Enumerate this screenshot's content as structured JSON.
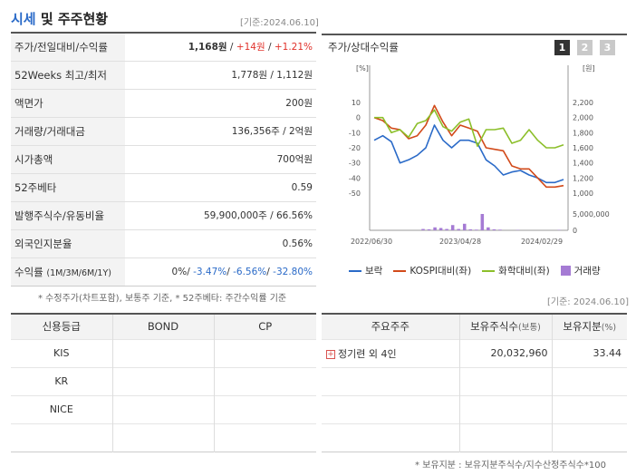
{
  "header": {
    "title_blue": "시세",
    "title_rest": " 및 주주현황",
    "base_date": "[기준:2024.06.10]"
  },
  "summary_rows": [
    {
      "label": "주가/전일대비/수익률",
      "price": "1,168원",
      "change": "+14원",
      "ratio": "+1.21%"
    },
    {
      "label": "52Weeks 최고/최저",
      "value": "1,778원 / 1,112원"
    },
    {
      "label": "액면가",
      "value": "200원"
    },
    {
      "label": "거래량/거래대금",
      "value": "136,356주 / 2억원"
    },
    {
      "label": "시가총액",
      "value": "700억원"
    },
    {
      "label": "52주베타",
      "value": "0.59"
    },
    {
      "label": "발행주식수/유동비율",
      "value": "59,900,000주 / 66.56%"
    },
    {
      "label": "외국인지분율",
      "value": "0.56%"
    },
    {
      "label": "수익률",
      "label_sub": "(1M/3M/6M/1Y)",
      "r1": "0%",
      "r2": "-3.47%",
      "r3": "-6.56%",
      "r4": "-32.80%"
    }
  ],
  "summary_note": "* 수정주가(차트포함), 보통주 기준, * 52주베타: 주간수익률 기준",
  "chart_panel": {
    "title": "주가/상대수익률",
    "tabs": [
      "1",
      "2",
      "3"
    ],
    "active_tab": "1",
    "base_date": "[기준: 2024.06.10]",
    "legend": [
      "보락",
      "KOSPI대비(좌)",
      "화학대비(좌)",
      "거래량"
    ]
  },
  "chart_data": {
    "type": "line",
    "left_axis_unit": "[%]",
    "right_axis_unit": "[원]",
    "left_ticks": [
      10,
      0,
      -10,
      -20,
      -30,
      -40,
      -50
    ],
    "right_ticks": [
      2200,
      2000,
      1800,
      1600,
      1400,
      1200,
      1000
    ],
    "right_tick_labels": [
      "2,200",
      "2,000",
      "1,800",
      "1,600",
      "1,400",
      "1,200",
      "1,000"
    ],
    "volume_ticks": [
      "5,000,000",
      "0"
    ],
    "x_tick_labels": [
      "2022/06/30",
      "2023/04/28",
      "2024/02/29"
    ],
    "colors": {
      "price": "#2a6ac8",
      "kospi": "#d24a1a",
      "chem": "#8cbf2a",
      "volume": "#a57bd4"
    },
    "series": [
      {
        "name": "보락",
        "values": [
          -15,
          -12,
          -16,
          -30,
          -28,
          -25,
          -20,
          -5,
          -15,
          -20,
          -15,
          -15,
          -17,
          -28,
          -32,
          -38,
          -36,
          -35,
          -38,
          -40,
          -43,
          -43,
          -41
        ]
      },
      {
        "name": "KOSPI대비(좌)",
        "values": [
          0,
          -2,
          -7,
          -8,
          -14,
          -12,
          -5,
          8,
          -3,
          -12,
          -5,
          -7,
          -9,
          -20,
          -21,
          -22,
          -32,
          -34,
          -34,
          -40,
          -46,
          -46,
          -45
        ]
      },
      {
        "name": "화학대비(좌)",
        "values": [
          0,
          0,
          -10,
          -8,
          -13,
          -4,
          -2,
          5,
          -6,
          -9,
          -3,
          -1,
          -19,
          -8,
          -8,
          -7,
          -17,
          -15,
          -8,
          -15,
          -20,
          -20,
          -18
        ]
      },
      {
        "name": "거래량",
        "values": [
          0,
          0,
          0,
          0,
          0,
          0,
          0,
          0,
          400000,
          300000,
          900000,
          700000,
          400000,
          1600000,
          400000,
          2000000,
          300000,
          200000,
          5000000,
          900000,
          300000,
          200000,
          0,
          0,
          100000,
          0,
          0,
          0,
          0,
          0,
          0,
          100000
        ]
      }
    ]
  },
  "credit_table": {
    "headers": [
      "신용등급",
      "BOND",
      "CP"
    ],
    "rows": [
      [
        "KIS",
        "",
        ""
      ],
      [
        "KR",
        "",
        ""
      ],
      [
        "NICE",
        "",
        ""
      ],
      [
        "",
        "",
        ""
      ]
    ]
  },
  "holder_table": {
    "headers": [
      "주요주주",
      "보유주식수",
      "(보통)",
      "보유지분",
      "(%)"
    ],
    "rows": [
      [
        "정기련 외 4인",
        "20,032,960",
        "33.44"
      ],
      [
        "",
        "",
        ""
      ],
      [
        "",
        "",
        ""
      ],
      [
        "",
        "",
        ""
      ]
    ]
  },
  "holder_note": "* 보유지분 : 보유지분주식수/지수산정주식수*100"
}
